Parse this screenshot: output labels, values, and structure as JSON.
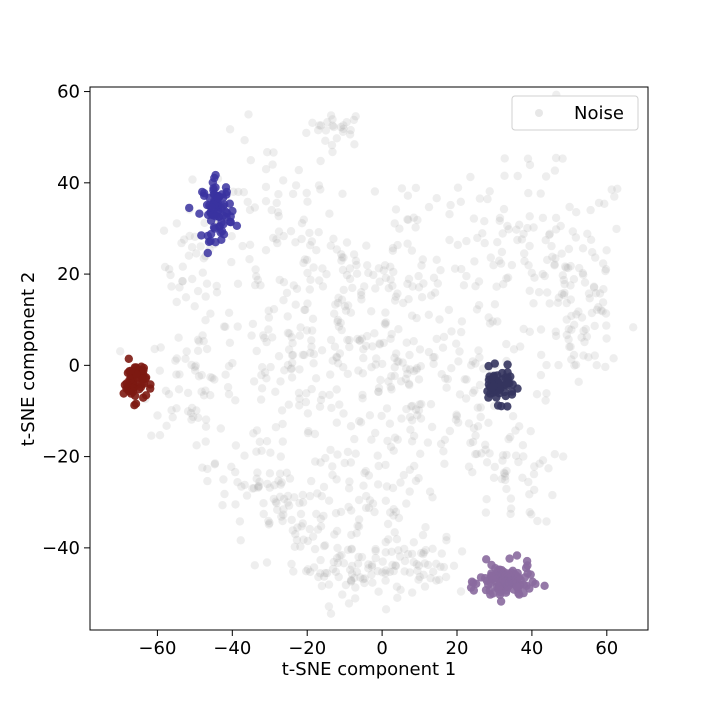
{
  "chart_data": {
    "type": "scatter",
    "title": "",
    "xlabel": "t-SNE component 1",
    "ylabel": "t-SNE component 2",
    "xlim": [
      -78,
      71
    ],
    "ylim": [
      -58,
      61
    ],
    "xticks": [
      -60,
      -40,
      -20,
      0,
      20,
      40,
      60
    ],
    "yticks": [
      -40,
      -20,
      0,
      20,
      40,
      60
    ],
    "xtick_labels": [
      "−60",
      "−40",
      "−20",
      "0",
      "20",
      "40",
      "60"
    ],
    "ytick_labels": [
      "−40",
      "−20",
      "0",
      "20",
      "40",
      "60"
    ],
    "grid": false,
    "legend": {
      "location": "top-right",
      "entries": [
        "Noise"
      ]
    },
    "series": [
      {
        "name": "Noise",
        "color": "#a0a0a0",
        "alpha": 0.18,
        "clusters": [
          {
            "cx": -12,
            "cy": 52,
            "sx": 4,
            "sy": 2,
            "n": 25
          },
          {
            "cx": -50,
            "cy": 22,
            "sx": 4,
            "sy": 6,
            "n": 35
          },
          {
            "cx": -30,
            "cy": 30,
            "sx": 9,
            "sy": 10,
            "n": 70
          },
          {
            "cx": -10,
            "cy": 15,
            "sx": 10,
            "sy": 10,
            "n": 90
          },
          {
            "cx": 8,
            "cy": 25,
            "sx": 6,
            "sy": 8,
            "n": 40
          },
          {
            "cx": 30,
            "cy": 22,
            "sx": 10,
            "sy": 10,
            "n": 80
          },
          {
            "cx": 50,
            "cy": 20,
            "sx": 8,
            "sy": 12,
            "n": 90
          },
          {
            "cx": 55,
            "cy": 5,
            "sx": 5,
            "sy": 5,
            "n": 30
          },
          {
            "cx": -50,
            "cy": -3,
            "sx": 7,
            "sy": 6,
            "n": 60
          },
          {
            "cx": -25,
            "cy": -3,
            "sx": 10,
            "sy": 10,
            "n": 90
          },
          {
            "cx": 5,
            "cy": -3,
            "sx": 10,
            "sy": 10,
            "n": 100
          },
          {
            "cx": 25,
            "cy": -10,
            "sx": 8,
            "sy": 10,
            "n": 60
          },
          {
            "cx": 35,
            "cy": -25,
            "sx": 6,
            "sy": 5,
            "n": 35
          },
          {
            "cx": -35,
            "cy": -25,
            "sx": 6,
            "sy": 6,
            "n": 45
          },
          {
            "cx": -20,
            "cy": -35,
            "sx": 8,
            "sy": 6,
            "n": 55
          },
          {
            "cx": 0,
            "cy": -30,
            "sx": 8,
            "sy": 8,
            "n": 70
          },
          {
            "cx": -10,
            "cy": -45,
            "sx": 8,
            "sy": 3,
            "n": 55
          },
          {
            "cx": 12,
            "cy": -45,
            "sx": 8,
            "sy": 3,
            "n": 45
          }
        ]
      },
      {
        "name": "",
        "color": "#3a32a0",
        "alpha": 0.85,
        "clusters": [
          {
            "cx": -44,
            "cy": 34,
            "sx": 2,
            "sy": 3.2,
            "n": 80
          }
        ]
      },
      {
        "name": "",
        "color": "#7d1a12",
        "alpha": 0.9,
        "clusters": [
          {
            "cx": -66,
            "cy": -3.5,
            "sx": 1.5,
            "sy": 2.2,
            "n": 60
          }
        ]
      },
      {
        "name": "",
        "color": "#34345e",
        "alpha": 0.9,
        "clusters": [
          {
            "cx": 31,
            "cy": -4.5,
            "sx": 2.2,
            "sy": 1.8,
            "n": 55
          }
        ]
      },
      {
        "name": "",
        "color": "#8a6a9e",
        "alpha": 0.9,
        "clusters": [
          {
            "cx": 33,
            "cy": -47.5,
            "sx": 3.5,
            "sy": 2,
            "n": 110
          }
        ]
      }
    ]
  }
}
